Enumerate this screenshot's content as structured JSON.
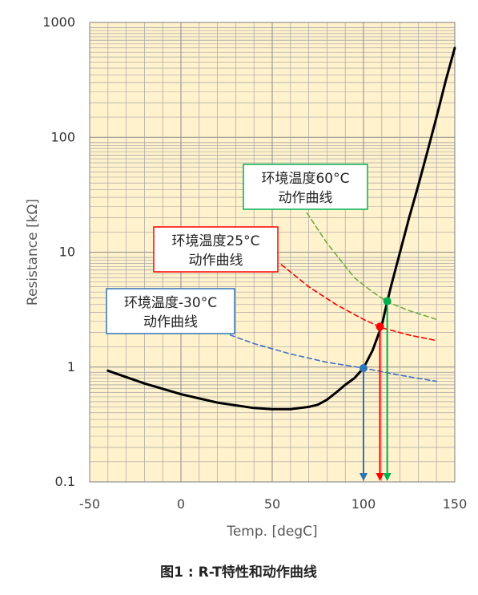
{
  "chart_data": {
    "type": "line",
    "title": "",
    "xlabel": "Temp. [degC]",
    "ylabel": "Resistance [kΩ]",
    "xlim": [
      -50,
      150
    ],
    "ylim": [
      0.1,
      1000
    ],
    "yscale": "log",
    "grid": true,
    "x_ticks": [
      "-50",
      "0",
      "50",
      "100",
      "150"
    ],
    "y_ticks": [
      "0.1",
      "1",
      "10",
      "100",
      "1000"
    ],
    "caption": "图1 : R-T特性和动作曲线",
    "series": [
      {
        "name": "",
        "style": "solid",
        "color": "#000000",
        "x": [
          -40,
          -20,
          0,
          20,
          40,
          50,
          60,
          70,
          75,
          80,
          85,
          90,
          95,
          100,
          105,
          110,
          113,
          115,
          120,
          125,
          130,
          135,
          140,
          145,
          150
        ],
        "y": [
          0.93,
          0.72,
          0.58,
          0.49,
          0.44,
          0.43,
          0.43,
          0.45,
          0.47,
          0.52,
          0.6,
          0.7,
          0.8,
          0.98,
          1.4,
          2.3,
          3.7,
          5.0,
          10.0,
          20.0,
          38.0,
          75.0,
          150.0,
          310.0,
          600.0
        ]
      },
      {
        "name": "环境温度-30°C 动作曲线",
        "style": "dashed",
        "color": "#4472c4",
        "x": [
          27,
          40,
          60,
          80,
          100,
          120,
          140
        ],
        "y": [
          1.9,
          1.6,
          1.3,
          1.1,
          0.98,
          0.85,
          0.75
        ]
      },
      {
        "name": "环境温度25°C 动作曲线",
        "style": "dashed",
        "color": "#ff0000",
        "x": [
          55,
          70,
          85,
          100,
          110,
          125,
          140
        ],
        "y": [
          7.8,
          5.0,
          3.5,
          2.6,
          2.2,
          1.9,
          1.7
        ]
      },
      {
        "name": "环境温度60°C 动作曲线",
        "style": "dashed",
        "color": "#70ad47",
        "x": [
          69,
          80,
          95,
          105,
          113,
          125,
          140
        ],
        "y": [
          22.0,
          12.0,
          6.0,
          4.5,
          3.7,
          3.1,
          2.6
        ]
      }
    ],
    "markers": [
      {
        "name": "-30°C",
        "x": 100,
        "y": 0.98,
        "color": "#2e75b6"
      },
      {
        "name": "25°C",
        "x": 109,
        "y": 2.25,
        "color": "#ff0000"
      },
      {
        "name": "60°C",
        "x": 113,
        "y": 3.75,
        "color": "#00b050"
      }
    ],
    "annotations": [
      {
        "key": "m30",
        "line1": "环境温度-30°C",
        "line2": "动作曲线",
        "border": "#2e75b6"
      },
      {
        "key": "t25",
        "line1": "环境温度25°C",
        "line2": "动作曲线",
        "border": "#ff0000"
      },
      {
        "key": "t60",
        "line1": "环境温度60°C",
        "line2": "动作曲线",
        "border": "#00b050"
      }
    ],
    "colors": {
      "plot_background": "#fff2cc",
      "grid": "#a6a6a6",
      "curve": "#000000"
    }
  }
}
